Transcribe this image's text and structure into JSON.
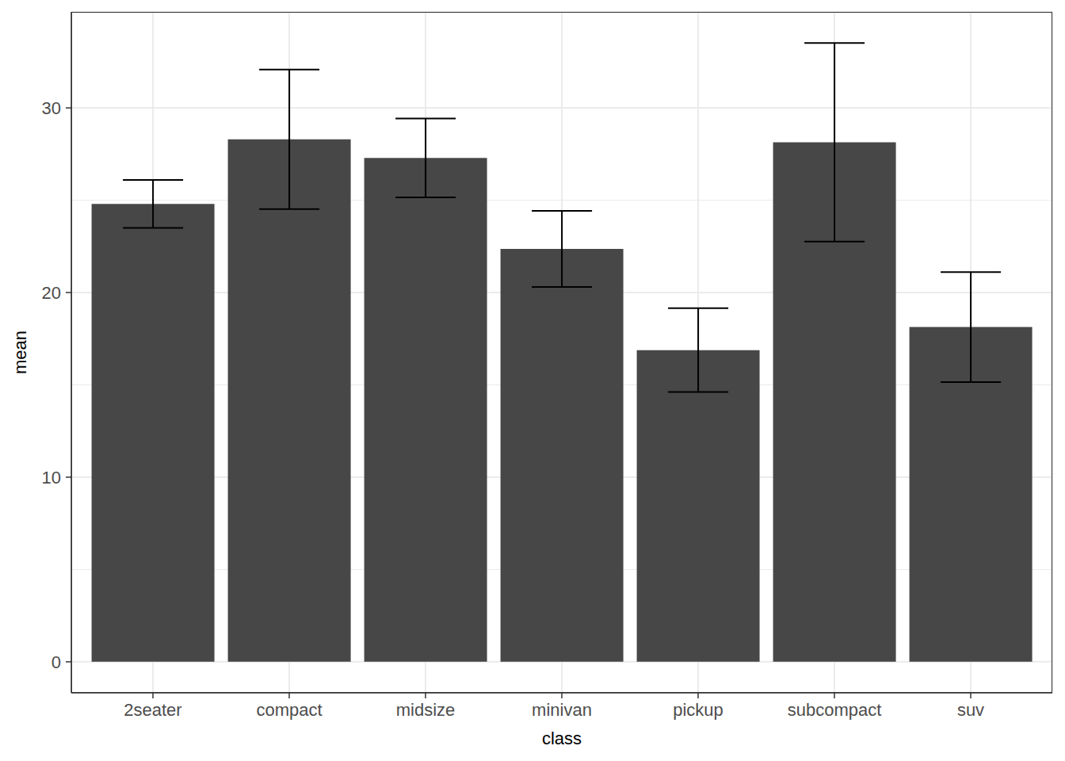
{
  "chart_data": {
    "type": "bar",
    "x_label": "class",
    "y_label": "mean",
    "categories": [
      "2seater",
      "compact",
      "midsize",
      "minivan",
      "pickup",
      "subcompact",
      "suv"
    ],
    "values": [
      24.8,
      28.3,
      27.29,
      22.36,
      16.88,
      28.14,
      18.13
    ],
    "errors": [
      1.3,
      3.78,
      2.14,
      2.06,
      2.27,
      5.38,
      2.98
    ],
    "color": "#474747",
    "ylim": [
      -1.68,
      35.2
    ],
    "yticks": [
      0,
      10,
      20,
      30
    ],
    "grid": true
  }
}
